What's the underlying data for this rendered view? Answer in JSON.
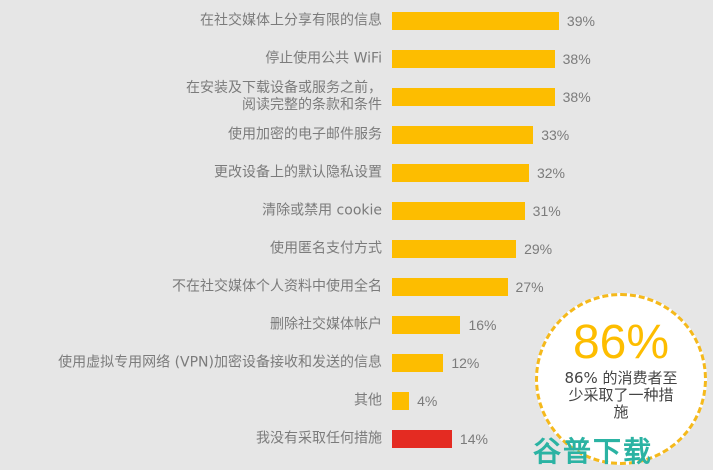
{
  "chart_data": {
    "type": "bar",
    "orientation": "horizontal",
    "title": "",
    "xlabel": "",
    "ylabel": "",
    "xlim": [
      0,
      40
    ],
    "grid": false,
    "legend": null,
    "categories": [
      "在社交媒体上分享有限的信息",
      "停止使用公共 WiFi",
      "在安装及下载设备或服务之前，\n阅读完整的条款和条件",
      "使用加密的电子邮件服务",
      "更改设备上的默认隐私设置",
      "清除或禁用 cookie",
      "使用匿名支付方式",
      "不在社交媒体个人资料中使用全名",
      "删除社交媒体帐户",
      "使用虚拟专用网络 (VPN)加密设备接收和发送的信息",
      "其他",
      "我没有采取任何措施"
    ],
    "values": [
      39,
      38,
      38,
      33,
      32,
      31,
      29,
      27,
      16,
      12,
      4,
      14
    ],
    "value_labels": [
      "39%",
      "38%",
      "38%",
      "33%",
      "32%",
      "31%",
      "29%",
      "27%",
      "16%",
      "12%",
      "4%",
      "14%"
    ],
    "colors": [
      "#fdbd00",
      "#fdbd00",
      "#fdbd00",
      "#fdbd00",
      "#fdbd00",
      "#fdbd00",
      "#fdbd00",
      "#fdbd00",
      "#fdbd00",
      "#fdbd00",
      "#fdbd00",
      "#e42b22"
    ],
    "annotations": [
      {
        "text": "86%",
        "detail": "86% 的消费者至少采取了一种措施"
      }
    ]
  },
  "rows": [
    {
      "label": "在社交媒体上分享有限的信息",
      "value": "39%"
    },
    {
      "label": "停止使用公共 WiFi",
      "value": "38%"
    },
    {
      "label": "在安装及下载设备或服务之前，\n阅读完整的条款和条件",
      "value": "38%"
    },
    {
      "label": "使用加密的电子邮件服务",
      "value": "33%"
    },
    {
      "label": "更改设备上的默认隐私设置",
      "value": "32%"
    },
    {
      "label": "清除或禁用 cookie",
      "value": "31%"
    },
    {
      "label": "使用匿名支付方式",
      "value": "29%"
    },
    {
      "label": "不在社交媒体个人资料中使用全名",
      "value": "27%"
    },
    {
      "label": "删除社交媒体帐户",
      "value": "16%"
    },
    {
      "label": "使用虚拟专用网络 (VPN)加密设备接收和发送的信息",
      "value": "12%"
    },
    {
      "label": "其他",
      "value": "4%"
    },
    {
      "label": "我没有采取任何措施",
      "value": "14%"
    }
  ],
  "callout": {
    "big": "86%",
    "text": "86% 的消费者至少采取了一种措施"
  },
  "watermark": "谷普下载",
  "colors": {
    "bar": "#fdbd00",
    "bar_none": "#e42b22",
    "background": "#e6e6e6",
    "label": "#7b7b7b",
    "callout_border": "#f5b91b",
    "watermark": "#2bb3a3"
  }
}
